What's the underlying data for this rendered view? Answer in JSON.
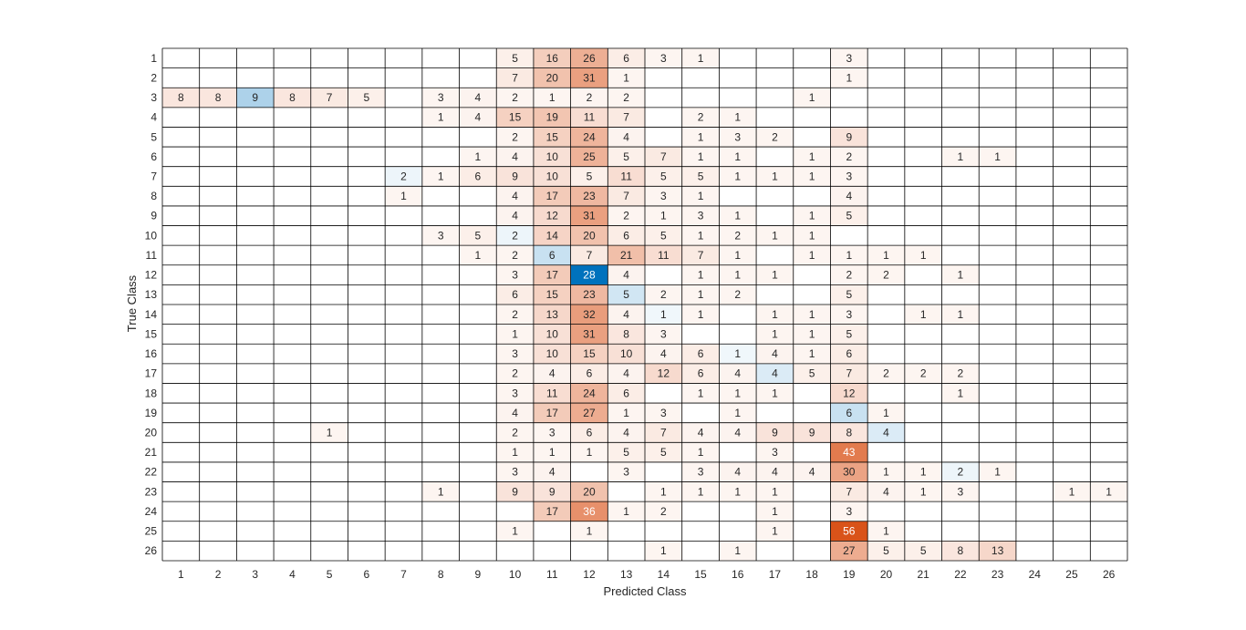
{
  "chart_data": {
    "type": "heatmap",
    "title": "",
    "xlabel": "Predicted Class",
    "ylabel": "True Class",
    "x_categories": [
      "1",
      "2",
      "3",
      "4",
      "5",
      "6",
      "7",
      "8",
      "9",
      "10",
      "11",
      "12",
      "13",
      "14",
      "15",
      "16",
      "17",
      "18",
      "19",
      "20",
      "21",
      "22",
      "23",
      "24",
      "25",
      "26"
    ],
    "y_categories": [
      "1",
      "2",
      "3",
      "4",
      "5",
      "6",
      "7",
      "8",
      "9",
      "10",
      "11",
      "12",
      "13",
      "14",
      "15",
      "16",
      "17",
      "18",
      "19",
      "20",
      "21",
      "22",
      "23",
      "24",
      "25",
      "26"
    ],
    "matrix": [
      [
        0,
        0,
        0,
        0,
        0,
        0,
        0,
        0,
        0,
        5,
        16,
        26,
        6,
        3,
        1,
        0,
        0,
        0,
        3,
        0,
        0,
        0,
        0,
        0,
        0,
        0
      ],
      [
        0,
        0,
        0,
        0,
        0,
        0,
        0,
        0,
        0,
        7,
        20,
        31,
        1,
        0,
        0,
        0,
        0,
        0,
        1,
        0,
        0,
        0,
        0,
        0,
        0,
        0
      ],
      [
        8,
        8,
        9,
        8,
        7,
        5,
        0,
        3,
        4,
        2,
        1,
        2,
        2,
        0,
        0,
        0,
        0,
        1,
        0,
        0,
        0,
        0,
        0,
        0,
        0,
        0
      ],
      [
        0,
        0,
        0,
        0,
        0,
        0,
        0,
        1,
        4,
        15,
        19,
        11,
        7,
        0,
        2,
        1,
        0,
        0,
        0,
        0,
        0,
        0,
        0,
        0,
        0,
        0
      ],
      [
        0,
        0,
        0,
        0,
        0,
        0,
        0,
        0,
        0,
        2,
        15,
        24,
        4,
        0,
        1,
        3,
        2,
        0,
        9,
        0,
        0,
        0,
        0,
        0,
        0,
        0
      ],
      [
        0,
        0,
        0,
        0,
        0,
        0,
        0,
        0,
        1,
        4,
        10,
        25,
        5,
        7,
        1,
        1,
        0,
        1,
        2,
        0,
        0,
        1,
        1,
        0,
        0,
        0
      ],
      [
        0,
        0,
        0,
        0,
        0,
        0,
        2,
        1,
        6,
        9,
        10,
        5,
        11,
        5,
        5,
        1,
        1,
        1,
        3,
        0,
        0,
        0,
        0,
        0,
        0,
        0
      ],
      [
        0,
        0,
        0,
        0,
        0,
        0,
        1,
        0,
        0,
        4,
        17,
        23,
        7,
        3,
        1,
        0,
        0,
        0,
        4,
        0,
        0,
        0,
        0,
        0,
        0,
        0
      ],
      [
        0,
        0,
        0,
        0,
        0,
        0,
        0,
        0,
        0,
        4,
        12,
        31,
        2,
        1,
        3,
        1,
        0,
        1,
        5,
        0,
        0,
        0,
        0,
        0,
        0,
        0
      ],
      [
        0,
        0,
        0,
        0,
        0,
        0,
        0,
        3,
        5,
        2,
        14,
        20,
        6,
        5,
        1,
        2,
        1,
        1,
        0,
        0,
        0,
        0,
        0,
        0,
        0,
        0
      ],
      [
        0,
        0,
        0,
        0,
        0,
        0,
        0,
        0,
        1,
        2,
        6,
        7,
        21,
        11,
        7,
        1,
        0,
        1,
        1,
        1,
        1,
        0,
        0,
        0,
        0,
        0
      ],
      [
        0,
        0,
        0,
        0,
        0,
        0,
        0,
        0,
        0,
        3,
        17,
        28,
        4,
        0,
        1,
        1,
        1,
        0,
        2,
        2,
        0,
        1,
        0,
        0,
        0,
        0
      ],
      [
        0,
        0,
        0,
        0,
        0,
        0,
        0,
        0,
        0,
        6,
        15,
        23,
        5,
        2,
        1,
        2,
        0,
        0,
        5,
        0,
        0,
        0,
        0,
        0,
        0,
        0
      ],
      [
        0,
        0,
        0,
        0,
        0,
        0,
        0,
        0,
        0,
        2,
        13,
        32,
        4,
        1,
        1,
        0,
        1,
        1,
        3,
        0,
        1,
        1,
        0,
        0,
        0,
        0
      ],
      [
        0,
        0,
        0,
        0,
        0,
        0,
        0,
        0,
        0,
        1,
        10,
        31,
        8,
        3,
        0,
        0,
        1,
        1,
        5,
        0,
        0,
        0,
        0,
        0,
        0,
        0
      ],
      [
        0,
        0,
        0,
        0,
        0,
        0,
        0,
        0,
        0,
        3,
        10,
        15,
        10,
        4,
        6,
        1,
        4,
        1,
        6,
        0,
        0,
        0,
        0,
        0,
        0,
        0
      ],
      [
        0,
        0,
        0,
        0,
        0,
        0,
        0,
        0,
        0,
        2,
        4,
        6,
        4,
        12,
        6,
        4,
        4,
        5,
        7,
        2,
        2,
        2,
        0,
        0,
        0,
        0
      ],
      [
        0,
        0,
        0,
        0,
        0,
        0,
        0,
        0,
        0,
        3,
        11,
        24,
        6,
        0,
        1,
        1,
        1,
        0,
        12,
        0,
        0,
        1,
        0,
        0,
        0,
        0
      ],
      [
        0,
        0,
        0,
        0,
        0,
        0,
        0,
        0,
        0,
        4,
        17,
        27,
        1,
        3,
        0,
        1,
        0,
        0,
        6,
        1,
        0,
        0,
        0,
        0,
        0,
        0
      ],
      [
        0,
        0,
        0,
        0,
        1,
        0,
        0,
        0,
        0,
        2,
        3,
        6,
        4,
        7,
        4,
        4,
        9,
        9,
        8,
        4,
        0,
        0,
        0,
        0,
        0,
        0
      ],
      [
        0,
        0,
        0,
        0,
        0,
        0,
        0,
        0,
        0,
        1,
        1,
        1,
        5,
        5,
        1,
        0,
        3,
        0,
        43,
        0,
        0,
        0,
        0,
        0,
        0,
        0
      ],
      [
        0,
        0,
        0,
        0,
        0,
        0,
        0,
        0,
        0,
        3,
        4,
        0,
        3,
        0,
        3,
        4,
        4,
        4,
        30,
        1,
        1,
        2,
        1,
        0,
        0,
        0
      ],
      [
        0,
        0,
        0,
        0,
        0,
        0,
        0,
        1,
        0,
        9,
        9,
        20,
        0,
        1,
        1,
        1,
        1,
        0,
        7,
        4,
        1,
        3,
        0,
        0,
        1,
        1
      ],
      [
        0,
        0,
        0,
        0,
        0,
        0,
        0,
        0,
        0,
        0,
        17,
        36,
        1,
        2,
        0,
        0,
        1,
        0,
        3,
        0,
        0,
        0,
        0,
        0,
        0,
        0
      ],
      [
        0,
        0,
        0,
        0,
        0,
        0,
        0,
        0,
        0,
        1,
        0,
        1,
        0,
        0,
        0,
        0,
        1,
        0,
        56,
        1,
        0,
        0,
        0,
        0,
        0,
        0
      ],
      [
        0,
        0,
        0,
        0,
        0,
        0,
        0,
        0,
        0,
        0,
        0,
        0,
        0,
        1,
        0,
        1,
        0,
        0,
        27,
        5,
        5,
        8,
        13,
        0,
        0,
        0
      ]
    ],
    "colors": {
      "diagonal_max": "#0072bd",
      "off_diagonal_max": "#d95319",
      "empty": "#ffffff",
      "grid": "#000000",
      "text": "#262626",
      "text_on_dark": "#ffffff"
    }
  }
}
